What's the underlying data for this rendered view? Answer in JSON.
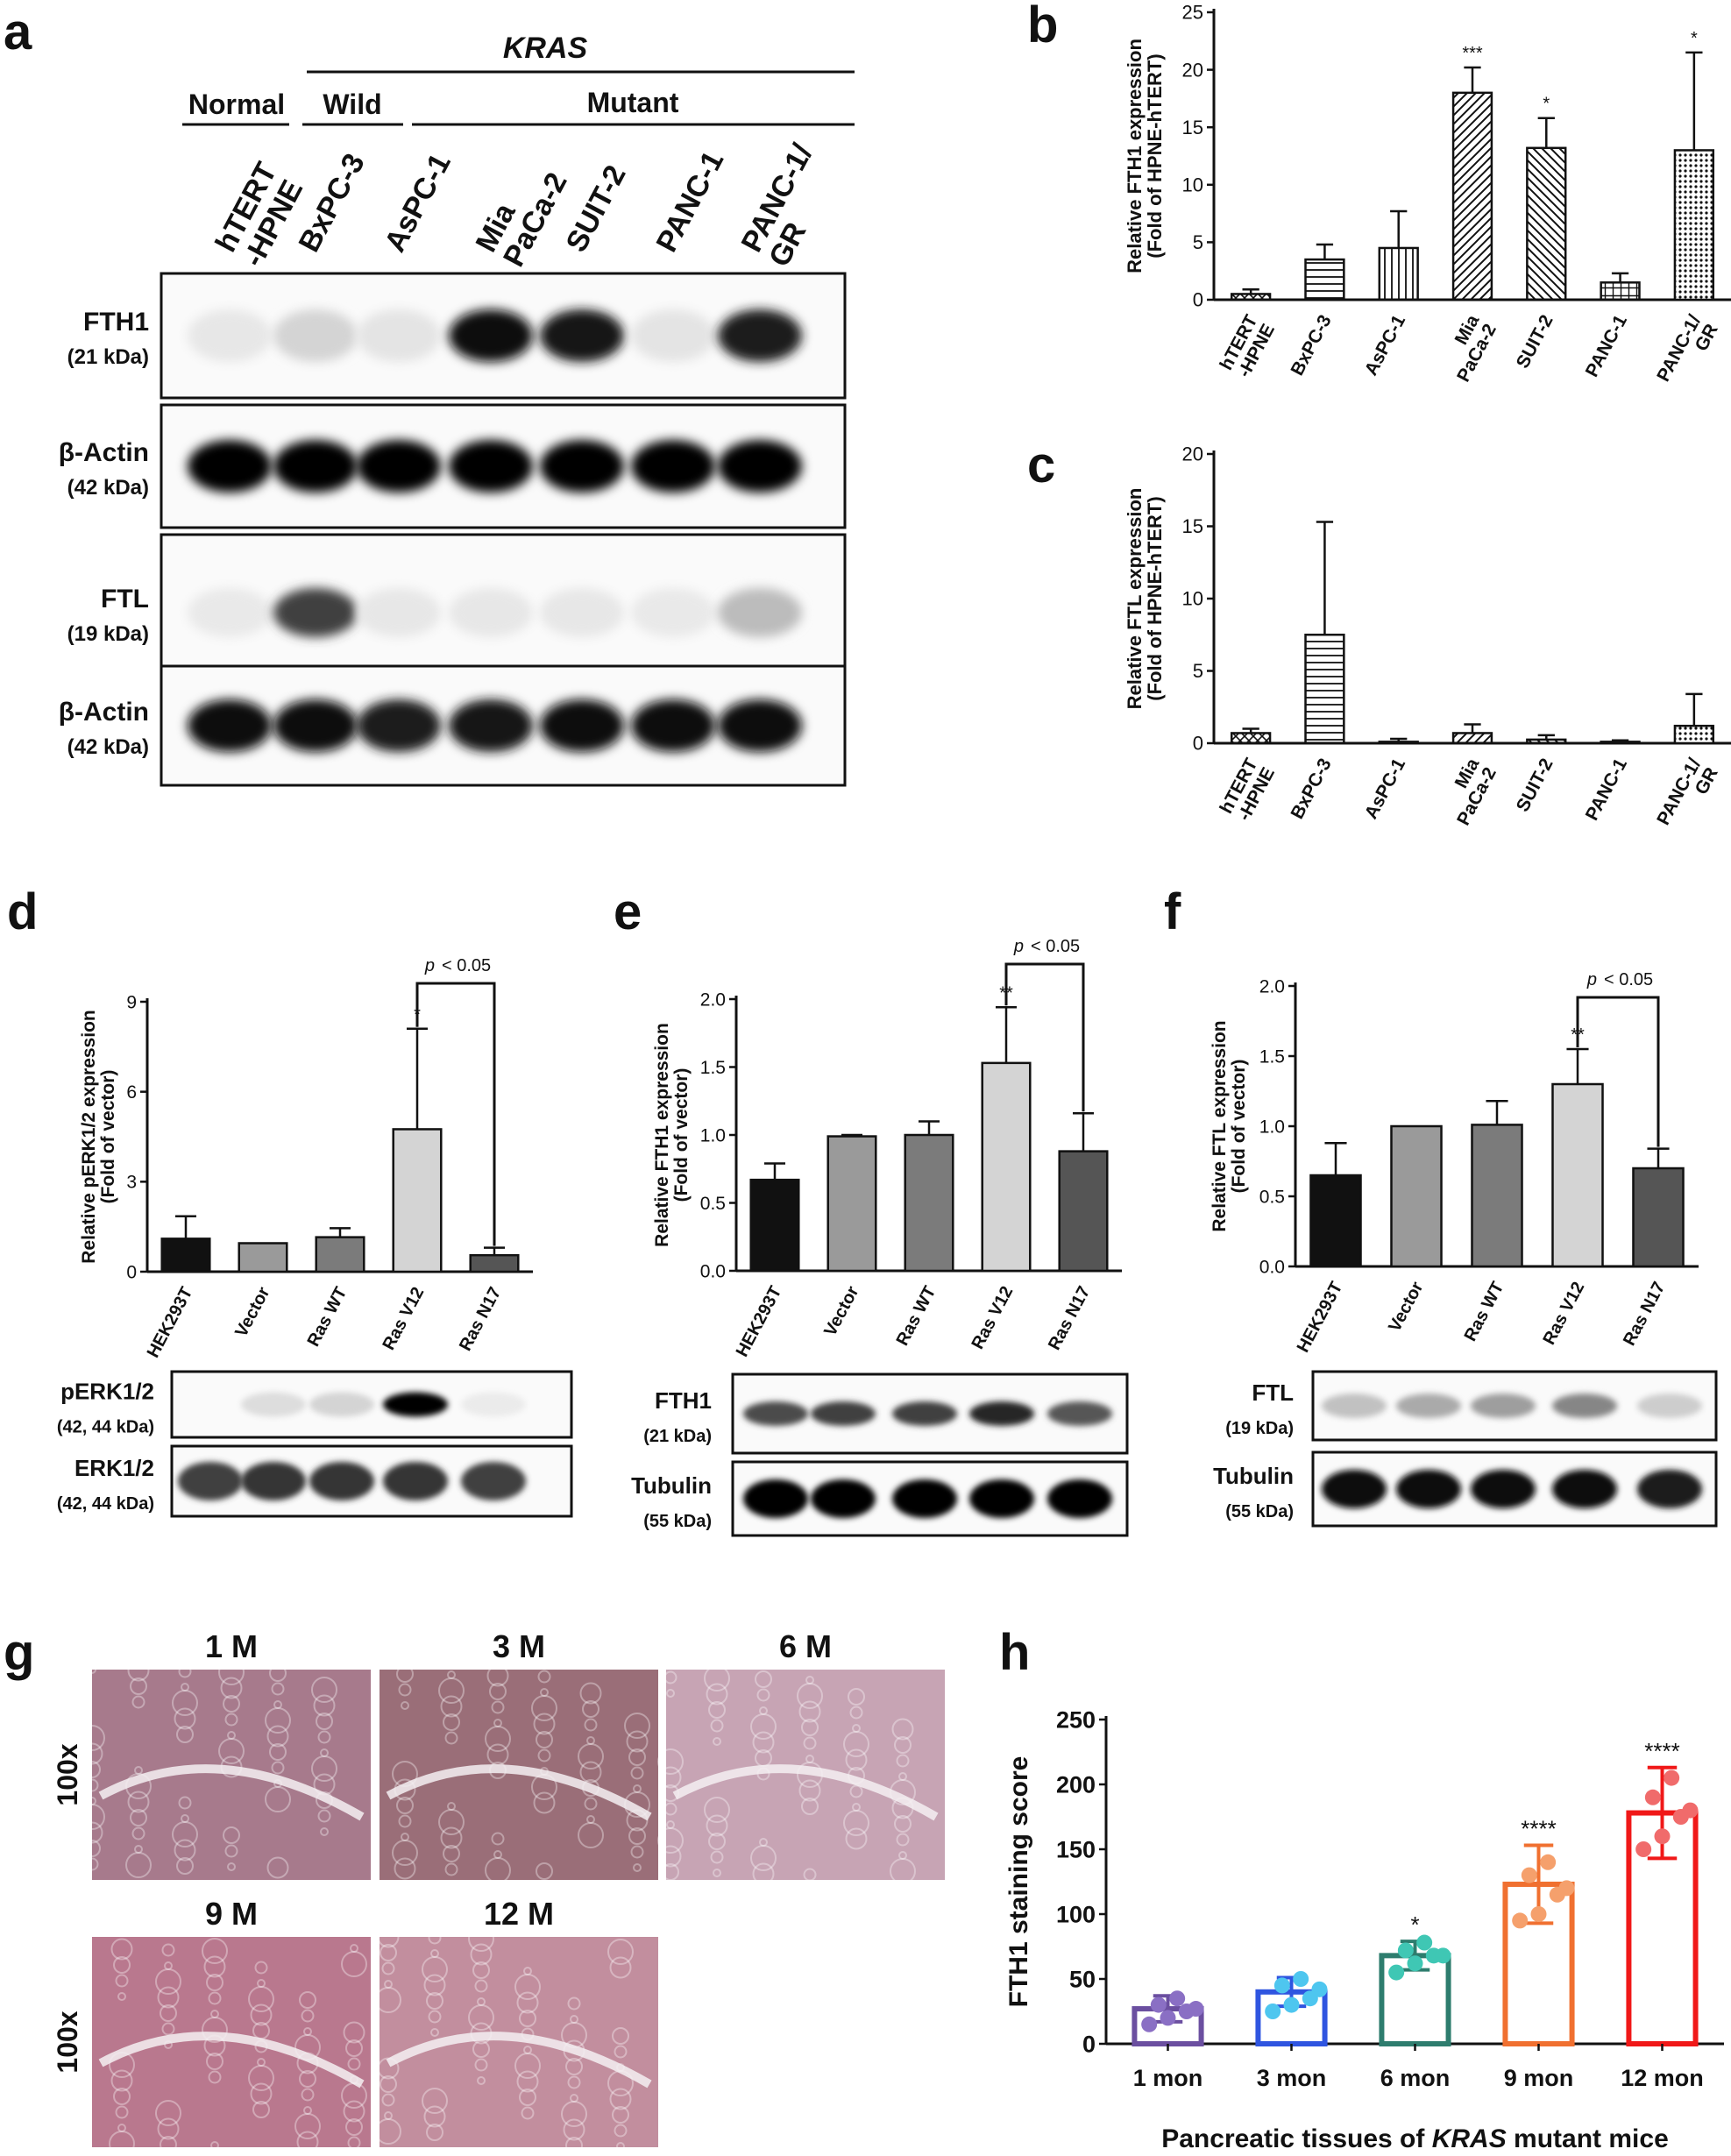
{
  "panel_letters": {
    "a": "a",
    "b": "b",
    "c": "c",
    "d": "d",
    "e": "e",
    "f": "f",
    "g": "g",
    "h": "h"
  },
  "panel_a": {
    "group_kras": "KRAS",
    "group_normal": "Normal",
    "group_wild": "Wild",
    "group_mutant": "Mutant",
    "lanes": [
      "hTERT\n-HPNE",
      "BxPC-3",
      "AsPC-1",
      "Mia\nPaCa-2",
      "SUIT-2",
      "PANC-1",
      "PANC-1/\nGR"
    ],
    "blots": [
      {
        "label": "FTH1",
        "size": "(21 kDa)",
        "intensity": [
          0.04,
          0.12,
          0.05,
          0.95,
          0.92,
          0.05,
          0.9
        ]
      },
      {
        "label": "β-Actin",
        "size": "(42 kDa)",
        "intensity": [
          1,
          1,
          1,
          1,
          1,
          1,
          1
        ]
      },
      {
        "label": "FTL",
        "size": "(19 kDa)",
        "intensity": [
          0.03,
          0.75,
          0.04,
          0.04,
          0.04,
          0.03,
          0.22
        ]
      },
      {
        "label": "β-Actin",
        "size": "(42 kDa)",
        "intensity": [
          0.95,
          0.95,
          0.9,
          0.92,
          0.95,
          0.95,
          0.95
        ]
      }
    ]
  },
  "panel_d_blots": [
    {
      "label": "pERK1/2",
      "size": "(42, 44 kDa)",
      "intensity": [
        0,
        0.08,
        0.12,
        1,
        0.02
      ]
    },
    {
      "label": "ERK1/2",
      "size": "(42, 44 kDa)",
      "intensity": [
        0.75,
        0.8,
        0.8,
        0.8,
        0.75
      ]
    }
  ],
  "panel_e_blots": [
    {
      "label": "FTH1",
      "size": "(21 kDa)",
      "intensity": [
        0.7,
        0.75,
        0.75,
        0.85,
        0.65
      ]
    },
    {
      "label": "Tubulin",
      "size": "(55 kDa)",
      "intensity": [
        1,
        1,
        1,
        1,
        1
      ]
    }
  ],
  "panel_f_blots": [
    {
      "label": "FTL",
      "size": "(19 kDa)",
      "intensity": [
        0.2,
        0.3,
        0.35,
        0.45,
        0.15
      ]
    },
    {
      "label": "Tubulin",
      "size": "(55 kDa)",
      "intensity": [
        0.95,
        0.95,
        0.95,
        0.95,
        0.9
      ]
    }
  ],
  "panel_g": {
    "timepoints": [
      "1 M",
      "3 M",
      "6 M",
      "9 M",
      "12 M"
    ],
    "magnification": "100x",
    "colors": [
      "#a77a8c",
      "#9a6e78",
      "#c7a4b4",
      "#b9788e",
      "#c28e9e"
    ]
  },
  "chart_data": [
    {
      "id": "b",
      "type": "bar",
      "categories": [
        "hTERT\n-HPNE",
        "BxPC-3",
        "AsPC-1",
        "Mia\nPaCa-2",
        "SUIT-2",
        "PANC-1",
        "PANC-1/\nGR"
      ],
      "values": [
        0.5,
        3.5,
        4.5,
        18,
        13.2,
        1.5,
        13
      ],
      "errors": [
        0.4,
        1.3,
        3.2,
        2.2,
        2.6,
        0.8,
        8.5
      ],
      "annotations": [
        "",
        "",
        "",
        "***",
        "*",
        "",
        "*"
      ],
      "ylabel": "Relative FTH1 expression\n(Fold of HPNE-hTERT)",
      "ylim": [
        0,
        25
      ],
      "yticks": [
        0,
        5,
        10,
        15,
        20,
        25
      ],
      "patterns": [
        "cross",
        "horiz",
        "vert",
        "diag",
        "diag2",
        "grid",
        "dots"
      ]
    },
    {
      "id": "c",
      "type": "bar",
      "categories": [
        "hTERT\n-HPNE",
        "BxPC-3",
        "AsPC-1",
        "Mia\nPaCa-2",
        "SUIT-2",
        "PANC-1",
        "PANC-1/\nGR"
      ],
      "values": [
        0.7,
        7.5,
        0.1,
        0.7,
        0.25,
        0.1,
        1.2
      ],
      "errors": [
        0.3,
        7.8,
        0.2,
        0.6,
        0.3,
        0.1,
        2.2
      ],
      "annotations": [
        "",
        "",
        "",
        "",
        "",
        "",
        ""
      ],
      "ylabel": "Relative FTL expression\n(Fold of HPNE-hTERT)",
      "ylim": [
        0,
        20
      ],
      "yticks": [
        0,
        5,
        10,
        15,
        20
      ],
      "patterns": [
        "cross",
        "horiz",
        "vert",
        "diag",
        "diag2",
        "grid",
        "dots"
      ]
    },
    {
      "id": "d",
      "type": "bar",
      "categories": [
        "HEK293T",
        "Vector",
        "Ras WT",
        "Ras V12",
        "Ras N17"
      ],
      "values": [
        1.1,
        0.95,
        1.15,
        4.75,
        0.55
      ],
      "errors": [
        0.75,
        0,
        0.3,
        3.35,
        0.25
      ],
      "annotations": [
        "",
        "",
        "",
        "*",
        ""
      ],
      "ylabel": "Relative pERK1/2 expression\n(Fold of vector)",
      "ylim": [
        0,
        9
      ],
      "yticks": [
        0,
        3,
        6,
        9
      ],
      "bracket": {
        "from": 3,
        "to": 4,
        "label": "< 0.05",
        "p": "p"
      },
      "colors": [
        "#111111",
        "#9a9a9a",
        "#7b7b7b",
        "#d4d4d4",
        "#555555"
      ]
    },
    {
      "id": "e",
      "type": "bar",
      "categories": [
        "HEK293T",
        "Vector",
        "Ras WT",
        "Ras V12",
        "Ras N17"
      ],
      "values": [
        0.67,
        0.99,
        1.0,
        1.53,
        0.88
      ],
      "errors": [
        0.12,
        0.01,
        0.1,
        0.41,
        0.28
      ],
      "annotations": [
        "",
        "",
        "",
        "**",
        ""
      ],
      "ylabel": "Relative FTH1 expression\n(Fold of vector)",
      "ylim": [
        0,
        2.0
      ],
      "yticks": [
        "0.0",
        "0.5",
        "1.0",
        "1.5",
        "2.0"
      ],
      "bracket": {
        "from": 3,
        "to": 4,
        "label": "< 0.05",
        "p": "p"
      },
      "colors": [
        "#111111",
        "#9a9a9a",
        "#7b7b7b",
        "#d4d4d4",
        "#555555"
      ]
    },
    {
      "id": "f",
      "type": "bar",
      "categories": [
        "HEK293T",
        "Vector",
        "Ras WT",
        "Ras V12",
        "Ras N17"
      ],
      "values": [
        0.65,
        1.0,
        1.01,
        1.3,
        0.7
      ],
      "errors": [
        0.23,
        0,
        0.17,
        0.25,
        0.14
      ],
      "annotations": [
        "",
        "",
        "",
        "**",
        ""
      ],
      "ylabel": "Relative FTL expression\n(Fold of vector)",
      "ylim": [
        0,
        2.0
      ],
      "yticks": [
        "0.0",
        "0.5",
        "1.0",
        "1.5",
        "2.0"
      ],
      "bracket": {
        "from": 3,
        "to": 4,
        "label": "< 0.05",
        "p": "p"
      },
      "colors": [
        "#111111",
        "#9a9a9a",
        "#7b7b7b",
        "#d4d4d4",
        "#555555"
      ]
    },
    {
      "id": "h",
      "type": "bar",
      "categories": [
        "1 mon",
        "3 mon",
        "6 mon",
        "9 mon",
        "12 mon"
      ],
      "values": [
        27,
        40,
        68,
        123,
        178
      ],
      "errors": [
        10,
        11,
        11,
        30,
        35
      ],
      "annotations": [
        "",
        "",
        "*",
        "****",
        "****"
      ],
      "points": [
        [
          15,
          20,
          25,
          30,
          35,
          27
        ],
        [
          25,
          30,
          35,
          45,
          50,
          42
        ],
        [
          55,
          62,
          68,
          72,
          78,
          68
        ],
        [
          95,
          100,
          115,
          130,
          140,
          120
        ],
        [
          150,
          160,
          175,
          190,
          205,
          180
        ]
      ],
      "ylabel": "FTH1 staining score",
      "xlabel_pre": "Pancreatic tissues of ",
      "xlabel_italic": "KRAS",
      "xlabel_post": " mutant mice",
      "ylim": [
        0,
        250
      ],
      "yticks": [
        0,
        50,
        100,
        150,
        200,
        250
      ],
      "colors": [
        "#6b4fa0",
        "#2f55e0",
        "#2e7d6e",
        "#f07030",
        "#f01818"
      ],
      "point_colors": [
        "#8a6fc4",
        "#4ec6ef",
        "#3fc7b4",
        "#f5a06c",
        "#f06b6b"
      ]
    }
  ]
}
